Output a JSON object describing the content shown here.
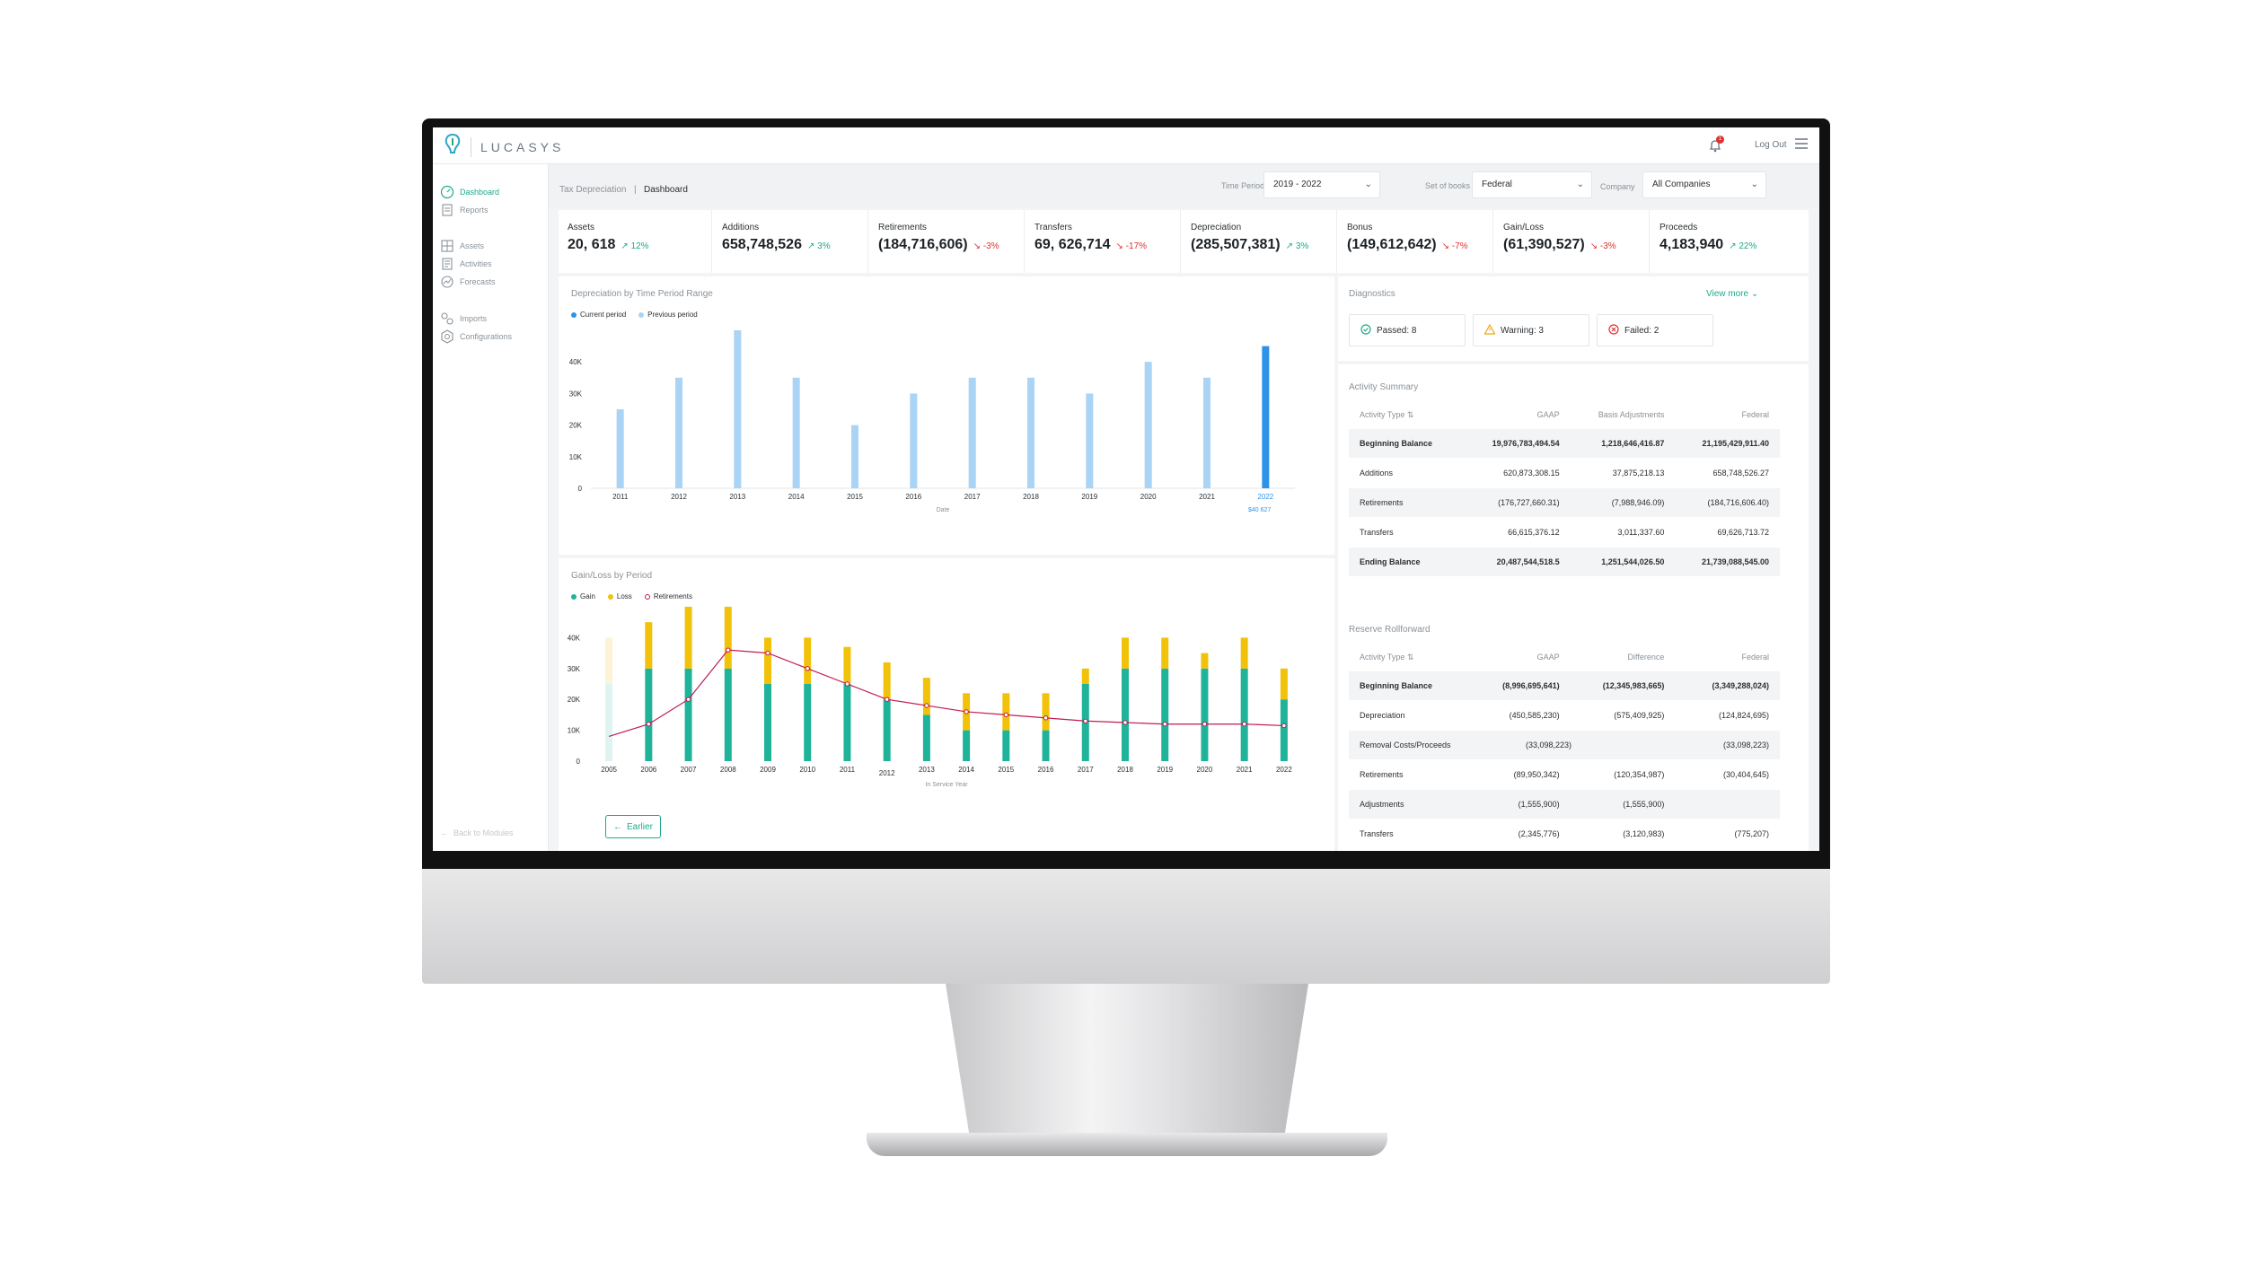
{
  "app": {
    "name": "LUCASYS",
    "logout": "Log Out",
    "notification_count": "1"
  },
  "sidebar": {
    "items": [
      {
        "label": "Dashboard",
        "icon": "dashboard-icon",
        "active": true
      },
      {
        "label": "Reports",
        "icon": "reports-icon"
      },
      {
        "label": "Assets",
        "icon": "assets-icon"
      },
      {
        "label": "Activities",
        "icon": "activities-icon"
      },
      {
        "label": "Forecasts",
        "icon": "forecasts-icon"
      },
      {
        "label": "Imports",
        "icon": "imports-icon"
      },
      {
        "label": "Configurations",
        "icon": "configurations-icon"
      }
    ],
    "back_label": "Back to Modules"
  },
  "breadcrumb": {
    "parent": "Tax Depreciation",
    "separator": "|",
    "current": "Dashboard"
  },
  "filters": {
    "time_period": {
      "label": "Time Period",
      "value": "2019 - 2022"
    },
    "set_of_books": {
      "label": "Set of books",
      "value": "Federal"
    },
    "company": {
      "label": "Company",
      "value": "All Companies"
    }
  },
  "kpis": [
    {
      "label": "Assets",
      "value": "20, 618",
      "delta": "12%",
      "trend": "up"
    },
    {
      "label": "Additions",
      "value": "658,748,526",
      "delta": "3%",
      "trend": "up"
    },
    {
      "label": "Retirements",
      "value": "(184,716,606)",
      "delta": "-3%",
      "trend": "down"
    },
    {
      "label": "Transfers",
      "value": "69, 626,714",
      "delta": "-17%",
      "trend": "down"
    },
    {
      "label": "Depreciation",
      "value": "(285,507,381)",
      "delta": "3%",
      "trend": "up"
    },
    {
      "label": "Bonus",
      "value": "(149,612,642)",
      "delta": "-7%",
      "trend": "down"
    },
    {
      "label": "Gain/Loss",
      "value": "(61,390,527)",
      "delta": "-3%",
      "trend": "down"
    },
    {
      "label": "Proceeds",
      "value": "4,183,940",
      "delta": "22%",
      "trend": "up"
    }
  ],
  "depreciation_panel": {
    "title": "Depreciation by Time Period Range"
  },
  "gainloss_panel": {
    "title": "Gain/Loss by Period",
    "earlier_button": "Earlier"
  },
  "chart_data": [
    {
      "type": "bar",
      "title": "Depreciation by Time Period Range",
      "xlabel": "Date",
      "categories": [
        "2011",
        "2012",
        "2013",
        "2014",
        "2015",
        "2016",
        "2017",
        "2018",
        "2019",
        "2020",
        "2021",
        "2022"
      ],
      "series": [
        {
          "name": "Previous period",
          "values": [
            25000,
            35000,
            50000,
            35000,
            20000,
            30000,
            35000,
            35000,
            30000,
            40000,
            35000,
            null
          ]
        },
        {
          "name": "Current period",
          "values": [
            null,
            null,
            null,
            null,
            null,
            null,
            null,
            null,
            null,
            null,
            null,
            45000
          ]
        }
      ],
      "yticks": [
        "0",
        "10K",
        "20K",
        "30K",
        "40K"
      ],
      "ylim": [
        0,
        50000
      ],
      "highlight_label": "$40 627",
      "legend": "top-left",
      "colors": {
        "Current period": "#2c93e8",
        "Previous period": "#a9d4f5"
      }
    },
    {
      "type": "bar",
      "title": "Gain/Loss by Period",
      "xlabel": "In Service Year",
      "categories": [
        "2005",
        "2006",
        "2007",
        "2008",
        "2009",
        "2010",
        "2011",
        "2012",
        "2013",
        "2014",
        "2015",
        "2016",
        "2017",
        "2018",
        "2019",
        "2020",
        "2021",
        "2022"
      ],
      "series": [
        {
          "name": "Gain",
          "values": [
            25000,
            30000,
            30000,
            30000,
            25000,
            25000,
            25000,
            20000,
            15000,
            10000,
            10000,
            10000,
            25000,
            30000,
            30000,
            30000,
            30000,
            20000
          ]
        },
        {
          "name": "Loss",
          "values": [
            15000,
            15000,
            20000,
            20000,
            15000,
            15000,
            12000,
            12000,
            12000,
            12000,
            12000,
            12000,
            5000,
            10000,
            10000,
            5000,
            10000,
            10000
          ]
        },
        {
          "name": "Retirements",
          "values": [
            8000,
            12000,
            20000,
            36000,
            35000,
            30000,
            25000,
            20000,
            18000,
            16000,
            15000,
            14000,
            13000,
            12500,
            12000,
            12000,
            12000,
            11500
          ]
        }
      ],
      "yticks": [
        "0",
        "10K",
        "20K",
        "30K",
        "40K"
      ],
      "ylim": [
        0,
        50000
      ],
      "legend": "top-left",
      "colors": {
        "Gain": "#1fb39a",
        "Loss": "#f2c20a",
        "Retirements": "#c21a50"
      }
    }
  ],
  "diagnostics": {
    "title": "Diagnostics",
    "view_more": "View more",
    "passed": "Passed: 8",
    "warning": "Warning: 3",
    "failed": "Failed: 2"
  },
  "activity_summary": {
    "title": "Activity Summary",
    "headers": [
      "Activity Type",
      "GAAP",
      "Basis Adjustments",
      "Federal"
    ],
    "rows": [
      [
        "Beginning Balance",
        "19,976,783,494.54",
        "1,218,646,416.87",
        "21,195,429,911.40"
      ],
      [
        "Additions",
        "620,873,308.15",
        "37,875,218.13",
        "658,748,526.27"
      ],
      [
        "Retirements",
        "(176,727,660.31)",
        "(7,988,946.09)",
        "(184,716,606.40)"
      ],
      [
        "Transfers",
        "66,615,376.12",
        "3,011,337.60",
        "69,626,713.72"
      ],
      [
        "Ending Balance",
        "20,487,544,518.5",
        "1,251,544,026.50",
        "21,739,088,545.00"
      ]
    ]
  },
  "reserve_rollforward": {
    "title": "Reserve Rollforward",
    "headers": [
      "Activity Type",
      "GAAP",
      "Difference",
      "Federal"
    ],
    "rows": [
      [
        "Beginning Balance",
        "(8,996,695,641)",
        "(12,345,983,665)",
        "(3,349,288,024)"
      ],
      [
        "Depreciation",
        "(450,585,230)",
        "(575,409,925)",
        "(124,824,695)"
      ],
      [
        "Removal Costs/Proceeds",
        "(33,098,223)",
        "",
        "(33,098,223)"
      ],
      [
        "Retirements",
        "(89,950,342)",
        "(120,354,987)",
        "(30,404,645)"
      ],
      [
        "Adjustments",
        "(1,555,900)",
        "(1,555,900)",
        ""
      ],
      [
        "Transfers",
        "(2,345,776)",
        "(3,120,983)",
        "(775,207)"
      ]
    ]
  }
}
